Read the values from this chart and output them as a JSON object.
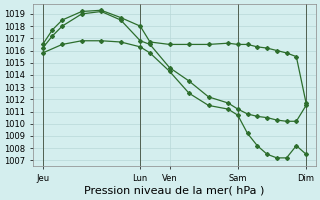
{
  "title": "",
  "xlabel": "Pression niveau de la mer( hPa )",
  "ylabel": "",
  "bg_color": "#d4eeee",
  "line_color": "#2d6e2d",
  "ylim": [
    1006.5,
    1019.8
  ],
  "yticks": [
    1007,
    1008,
    1009,
    1010,
    1011,
    1012,
    1013,
    1014,
    1015,
    1016,
    1017,
    1018,
    1019
  ],
  "xlim": [
    0,
    14.5
  ],
  "xtick_positions": [
    0.5,
    5.5,
    7.0,
    10.5,
    14.0
  ],
  "xtick_labels": [
    "Jeu",
    "Lun",
    "Ven",
    "Sam",
    "Dim"
  ],
  "vline_positions": [
    0.5,
    5.5,
    10.5,
    14.0
  ],
  "line1_x": [
    0.5,
    1.0,
    1.5,
    2.5,
    3.5,
    4.5,
    5.5,
    6.0,
    7.0,
    8.0,
    9.0,
    10.0,
    10.5,
    11.0,
    11.5,
    12.0,
    12.5,
    13.0,
    13.5,
    14.0
  ],
  "line1_y": [
    1016.5,
    1017.7,
    1018.5,
    1019.2,
    1019.3,
    1018.7,
    1018.0,
    1016.7,
    1016.5,
    1016.5,
    1016.5,
    1016.6,
    1016.5,
    1016.5,
    1016.3,
    1016.2,
    1016.0,
    1015.8,
    1015.5,
    1011.7
  ],
  "line2_x": [
    0.5,
    1.0,
    1.5,
    2.5,
    3.5,
    4.5,
    5.5,
    6.0,
    7.0,
    8.0,
    9.0,
    10.0,
    10.5,
    11.0,
    11.5,
    12.0,
    12.5,
    13.0,
    13.5,
    14.0
  ],
  "line2_y": [
    1016.2,
    1017.2,
    1018.0,
    1019.0,
    1019.2,
    1018.5,
    1016.8,
    1016.5,
    1014.6,
    1013.5,
    1012.2,
    1011.7,
    1011.2,
    1010.8,
    1010.6,
    1010.5,
    1010.3,
    1010.2,
    1010.2,
    1011.5
  ],
  "line3_x": [
    0.5,
    1.5,
    2.5,
    3.5,
    4.5,
    5.5,
    6.0,
    7.0,
    8.0,
    9.0,
    10.0,
    10.5,
    11.0,
    11.5,
    12.0,
    12.5,
    13.0,
    13.5,
    14.0
  ],
  "line3_y": [
    1015.8,
    1016.5,
    1016.8,
    1016.8,
    1016.7,
    1016.3,
    1015.8,
    1014.3,
    1012.5,
    1011.5,
    1011.2,
    1010.7,
    1009.2,
    1008.2,
    1007.5,
    1007.2,
    1007.2,
    1008.2,
    1007.5
  ],
  "marker": "D",
  "markersize": 2.0,
  "linewidth": 0.9,
  "xlabel_fontsize": 8,
  "tick_fontsize": 6
}
